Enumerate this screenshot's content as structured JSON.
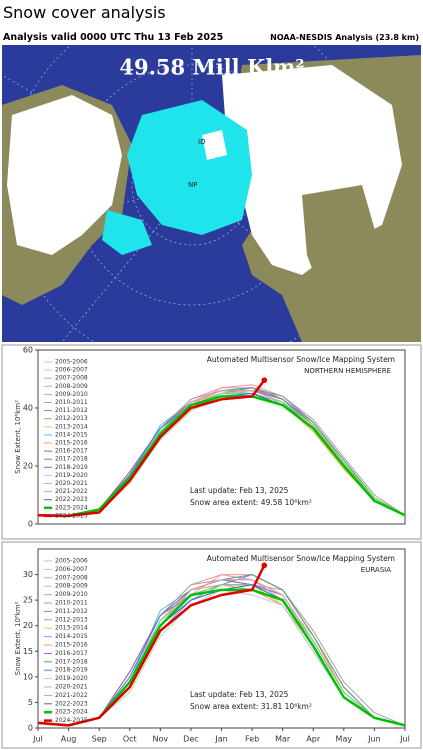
{
  "header": {
    "title": "Snow cover analysis",
    "valid": "Analysis valid 0000 UTC  Thu 13 Feb 2025",
    "source": "NOAA-NESDIS Analysis (23.8 km)"
  },
  "map": {
    "label": "49.58 Mill Klm²",
    "markers": [
      "ID",
      "NP"
    ]
  },
  "chart_data": [
    {
      "type": "line",
      "title": "Automated  Multisensor Snow/Ice Mapping System",
      "subtitle": "NORTHERN HEMISPHERE",
      "y_label": "Snow Extent, 10⁶km²",
      "annotations": [
        "Last update: Feb 13, 2025",
        "Snow area extent: 49.58 10⁶km²"
      ],
      "x": [
        0,
        1,
        2,
        3,
        4,
        5,
        6,
        7,
        8,
        9,
        10,
        11,
        12
      ],
      "xlim": [
        0,
        12
      ],
      "ylim": [
        0,
        60
      ],
      "yticks": [
        0,
        20,
        40,
        60
      ],
      "series": [
        {
          "name": "2005-2006",
          "color": "#9fd0e8",
          "values": [
            3,
            2.7,
            5,
            15,
            30,
            42,
            46,
            47,
            43,
            34,
            20,
            8,
            3
          ]
        },
        {
          "name": "2006-2007",
          "color": "#a0e0a0",
          "values": [
            3,
            2.9,
            4,
            14,
            29,
            39,
            44,
            45,
            42,
            35,
            22,
            9,
            3
          ]
        },
        {
          "name": "2007-2008",
          "color": "#d0a0d0",
          "values": [
            3,
            2.6,
            5,
            17,
            32,
            41,
            47,
            47,
            41,
            33,
            20,
            8,
            3
          ]
        },
        {
          "name": "2008-2009",
          "color": "#b0b0ff",
          "values": [
            3,
            2.8,
            5,
            16,
            31,
            42,
            45,
            46,
            43,
            34,
            21,
            9,
            3
          ]
        },
        {
          "name": "2009-2010",
          "color": "#ff9090",
          "values": [
            3,
            2.7,
            5,
            17,
            33,
            43,
            47,
            48,
            44,
            35,
            21,
            9,
            3
          ]
        },
        {
          "name": "2010-2011",
          "color": "#c8a060",
          "values": [
            3,
            2.8,
            4,
            16,
            32,
            42,
            46,
            47,
            43,
            34,
            21,
            9,
            3
          ]
        },
        {
          "name": "2011-2012",
          "color": "#8080ff",
          "values": [
            3,
            2.7,
            5,
            15,
            30,
            40,
            45,
            47,
            44,
            35,
            22,
            9,
            3
          ]
        },
        {
          "name": "2012-2013",
          "color": "#a0a0a0",
          "values": [
            3,
            2.6,
            5,
            18,
            33,
            43,
            46,
            46,
            44,
            36,
            23,
            10,
            3
          ]
        },
        {
          "name": "2013-2014",
          "color": "#d0d060",
          "values": [
            3,
            2.8,
            5,
            17,
            32,
            41,
            45,
            46,
            42,
            34,
            21,
            9,
            3
          ]
        },
        {
          "name": "2014-2015",
          "color": "#60c0c0",
          "values": [
            3,
            2.9,
            5,
            16,
            34,
            42,
            46,
            45,
            41,
            33,
            20,
            8,
            3
          ]
        },
        {
          "name": "2015-2016",
          "color": "#ffa040",
          "values": [
            3,
            2.8,
            4,
            16,
            32,
            42,
            45,
            45,
            41,
            32,
            19,
            8,
            3
          ]
        },
        {
          "name": "2016-2017",
          "color": "#a060a0",
          "values": [
            3,
            2.7,
            5,
            18,
            33,
            42,
            46,
            46,
            43,
            34,
            20,
            8,
            3
          ]
        },
        {
          "name": "2017-2018",
          "color": "#60a060",
          "values": [
            3,
            2.8,
            5,
            16,
            31,
            42,
            46,
            47,
            43,
            35,
            22,
            9,
            3
          ]
        },
        {
          "name": "2018-2019",
          "color": "#4080ff",
          "values": [
            3,
            2.7,
            5,
            17,
            33,
            41,
            45,
            45,
            42,
            33,
            20,
            8,
            3
          ]
        },
        {
          "name": "2019-2020",
          "color": "#c0c0ff",
          "values": [
            3,
            2.8,
            5,
            16,
            32,
            41,
            45,
            44,
            41,
            33,
            20,
            8,
            3
          ]
        },
        {
          "name": "2020-2021",
          "color": "#e0a0c0",
          "values": [
            3,
            2.7,
            5,
            15,
            31,
            42,
            46,
            46,
            42,
            34,
            21,
            9,
            3
          ]
        },
        {
          "name": "2021-2022",
          "color": "#80d080",
          "values": [
            3,
            2.6,
            5,
            16,
            32,
            41,
            45,
            45,
            42,
            34,
            21,
            9,
            3
          ]
        },
        {
          "name": "2022-2023",
          "color": "#4060d0",
          "values": [
            3,
            2.7,
            4,
            15,
            31,
            40,
            44,
            45,
            41,
            33,
            20,
            8,
            3
          ]
        },
        {
          "name": "2023-2024",
          "color": "#00c000",
          "linewidth": 2.5,
          "values": [
            3,
            2.8,
            5,
            16,
            31,
            41,
            44,
            44,
            41,
            33,
            20,
            8,
            3
          ]
        },
        {
          "name": "2024-2025",
          "color": "#e00000",
          "linewidth": 2.5,
          "x": [
            0,
            1,
            2,
            3,
            4,
            5,
            6,
            7,
            7.4
          ],
          "values": [
            3,
            2.8,
            4,
            15,
            30,
            40,
            43,
            44,
            49.58
          ]
        }
      ]
    },
    {
      "type": "line",
      "title": "Automated  Multisensor Snow/Ice Mapping System",
      "subtitle": "EURASIA",
      "y_label": "Snow Extent, 10⁶km²",
      "annotations": [
        "Last update: Feb 13, 2025",
        "Snow area extent: 31.81 10⁶km²"
      ],
      "x": [
        0,
        1,
        2,
        3,
        4,
        5,
        6,
        7,
        8,
        9,
        10,
        11,
        12
      ],
      "xlim": [
        0,
        12
      ],
      "ylim": [
        0,
        35
      ],
      "yticks": [
        0,
        5,
        10,
        15,
        20,
        25,
        30
      ],
      "xticks": [
        {
          "value": 0,
          "label": "Jul"
        },
        {
          "value": 1,
          "label": "Aug"
        },
        {
          "value": 2,
          "label": "Sep"
        },
        {
          "value": 3,
          "label": "Oct"
        },
        {
          "value": 4,
          "label": "Nov"
        },
        {
          "value": 5,
          "label": "Dec"
        },
        {
          "value": 6,
          "label": "Jan"
        },
        {
          "value": 7,
          "label": "Feb"
        },
        {
          "value": 8,
          "label": "Mar"
        },
        {
          "value": 9,
          "label": "Apr"
        },
        {
          "value": 10,
          "label": "May"
        },
        {
          "value": 11,
          "label": "Jun"
        },
        {
          "value": 12,
          "label": "Jul"
        }
      ],
      "series": [
        {
          "name": "2005-2006",
          "color": "#9fd0e8",
          "values": [
            1,
            0.5,
            2,
            8,
            20,
            27,
            29,
            29,
            26,
            17,
            7,
            2,
            0.5
          ]
        },
        {
          "name": "2006-2007",
          "color": "#a0e0a0",
          "values": [
            1,
            0.5,
            2,
            7,
            18,
            24,
            27,
            28,
            25,
            18,
            8,
            2,
            0.5
          ]
        },
        {
          "name": "2007-2008",
          "color": "#d0a0d0",
          "values": [
            1,
            0.4,
            2,
            10,
            21,
            26,
            30,
            29,
            25,
            16,
            6,
            2,
            0.5
          ]
        },
        {
          "name": "2008-2009",
          "color": "#b0b0ff",
          "values": [
            1,
            0.5,
            2,
            9,
            20,
            27,
            28,
            28,
            26,
            17,
            7,
            2,
            0.5
          ]
        },
        {
          "name": "2009-2010",
          "color": "#ff9090",
          "values": [
            1,
            0.5,
            2,
            10,
            22,
            28,
            30,
            30,
            27,
            18,
            7,
            2,
            0.5
          ]
        },
        {
          "name": "2010-2011",
          "color": "#c8a060",
          "values": [
            1,
            0.5,
            2,
            9,
            21,
            27,
            29,
            29,
            26,
            17,
            7,
            2,
            0.5
          ]
        },
        {
          "name": "2011-2012",
          "color": "#8080ff",
          "values": [
            1,
            0.5,
            2,
            8,
            19,
            25,
            28,
            30,
            27,
            18,
            8,
            2,
            0.5
          ]
        },
        {
          "name": "2012-2013",
          "color": "#a0a0a0",
          "values": [
            1,
            0.4,
            2,
            11,
            22,
            28,
            29,
            28,
            27,
            19,
            9,
            3,
            0.5
          ]
        },
        {
          "name": "2013-2014",
          "color": "#d0d060",
          "values": [
            1,
            0.5,
            2,
            9,
            20,
            26,
            28,
            28,
            24,
            16,
            6,
            2,
            0.5
          ]
        },
        {
          "name": "2014-2015",
          "color": "#60c0c0",
          "values": [
            1,
            0.5,
            2,
            9,
            23,
            27,
            29,
            28,
            25,
            16,
            6,
            2,
            0.5
          ]
        },
        {
          "name": "2015-2016",
          "color": "#ffa040",
          "values": [
            1,
            0.5,
            2,
            9,
            21,
            27,
            28,
            27,
            24,
            15,
            6,
            2,
            0.5
          ]
        },
        {
          "name": "2016-2017",
          "color": "#a060a0",
          "values": [
            1,
            0.5,
            2,
            11,
            22,
            27,
            29,
            28,
            26,
            17,
            7,
            2,
            0.5
          ]
        },
        {
          "name": "2017-2018",
          "color": "#60a060",
          "values": [
            1,
            0.5,
            2,
            9,
            20,
            27,
            29,
            30,
            27,
            18,
            8,
            2,
            0.5
          ]
        },
        {
          "name": "2018-2019",
          "color": "#4080ff",
          "values": [
            1,
            0.5,
            2,
            10,
            22,
            26,
            28,
            28,
            25,
            16,
            6,
            2,
            0.5
          ]
        },
        {
          "name": "2019-2020",
          "color": "#c0c0ff",
          "values": [
            1,
            0.5,
            2,
            9,
            21,
            26,
            27,
            26,
            24,
            15,
            6,
            2,
            0.5
          ]
        },
        {
          "name": "2020-2021",
          "color": "#e0a0c0",
          "values": [
            1,
            0.5,
            2,
            8,
            20,
            27,
            29,
            29,
            26,
            17,
            7,
            2,
            0.5
          ]
        },
        {
          "name": "2021-2022",
          "color": "#80d080",
          "values": [
            1,
            0.4,
            2,
            9,
            21,
            26,
            28,
            28,
            25,
            17,
            7,
            2,
            0.5
          ]
        },
        {
          "name": "2022-2023",
          "color": "#4060d0",
          "values": [
            1,
            0.5,
            2,
            8,
            20,
            25,
            27,
            28,
            25,
            16,
            6,
            2,
            0.5
          ]
        },
        {
          "name": "2023-2024",
          "color": "#00c000",
          "linewidth": 2.5,
          "values": [
            1,
            0.5,
            2,
            9,
            20,
            26,
            27,
            27,
            25,
            16,
            6,
            2,
            0.5
          ]
        },
        {
          "name": "2024-2025",
          "color": "#e00000",
          "linewidth": 2.5,
          "x": [
            0,
            1,
            2,
            3,
            4,
            5,
            6,
            7,
            7.4
          ],
          "values": [
            1,
            0.5,
            2,
            8,
            19,
            24,
            26,
            27,
            31.81
          ]
        }
      ]
    }
  ]
}
